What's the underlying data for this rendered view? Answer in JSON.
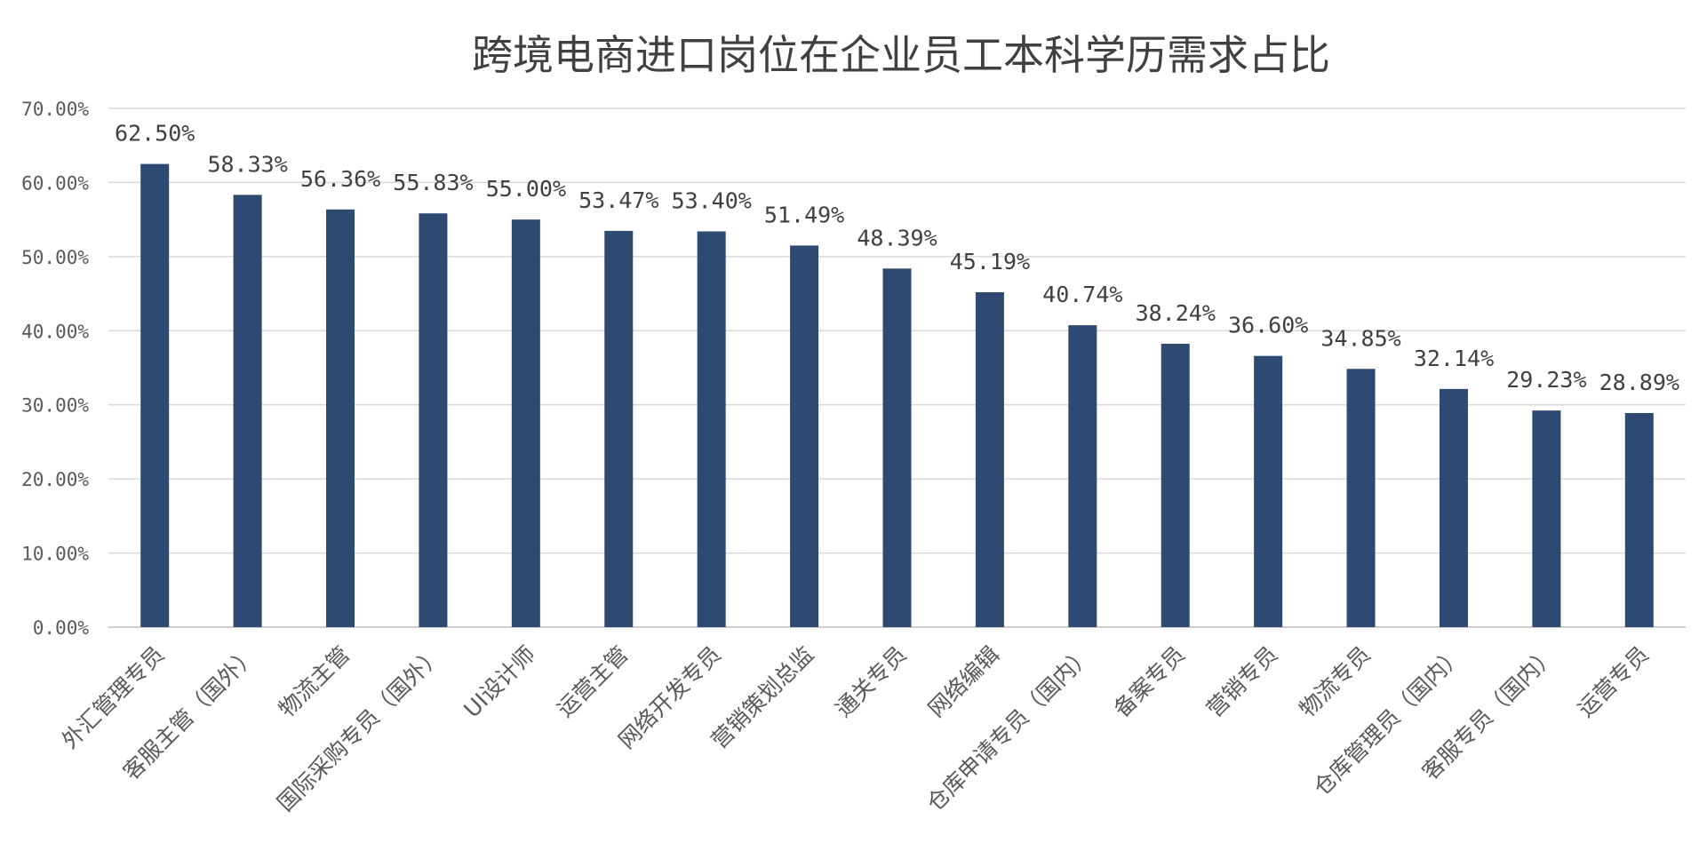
{
  "chart_data": {
    "type": "bar",
    "title": "跨境电商进口岗位在企业员工本科学历需求占比",
    "xlabel": "",
    "ylabel": "",
    "categories": [
      "外汇管理专员",
      "客服主管（国外）",
      "物流主管",
      "国际采购专员（国外）",
      "UI设计师",
      "运营主管",
      "网络开发专员",
      "营销策划总监",
      "通关专员",
      "网络编辑",
      "仓库申请专员（国内）",
      "备案专员",
      "营销专员",
      "物流专员",
      "仓库管理员（国内）",
      "客服专员（国内）",
      "运营专员"
    ],
    "values": [
      62.5,
      58.33,
      56.36,
      55.83,
      55.0,
      53.47,
      53.4,
      51.49,
      48.39,
      45.19,
      40.74,
      38.24,
      36.6,
      34.85,
      32.14,
      29.23,
      28.89
    ],
    "data_labels": [
      "62.50%",
      "58.33%",
      "56.36%",
      "55.83%",
      "55.00%",
      "53.47%",
      "53.40%",
      "51.49%",
      "48.39%",
      "45.19%",
      "40.74%",
      "38.24%",
      "36.60%",
      "34.85%",
      "32.14%",
      "29.23%",
      "28.89%"
    ],
    "ylim": [
      0,
      70
    ],
    "yticks": [
      0,
      10,
      20,
      30,
      40,
      50,
      60,
      70
    ],
    "ytick_labels": [
      "0.00%",
      "10.00%",
      "20.00%",
      "30.00%",
      "40.00%",
      "50.00%",
      "60.00%",
      "70.00%"
    ],
    "grid": true,
    "legend": "none",
    "bar_color": "#2E4A72"
  }
}
